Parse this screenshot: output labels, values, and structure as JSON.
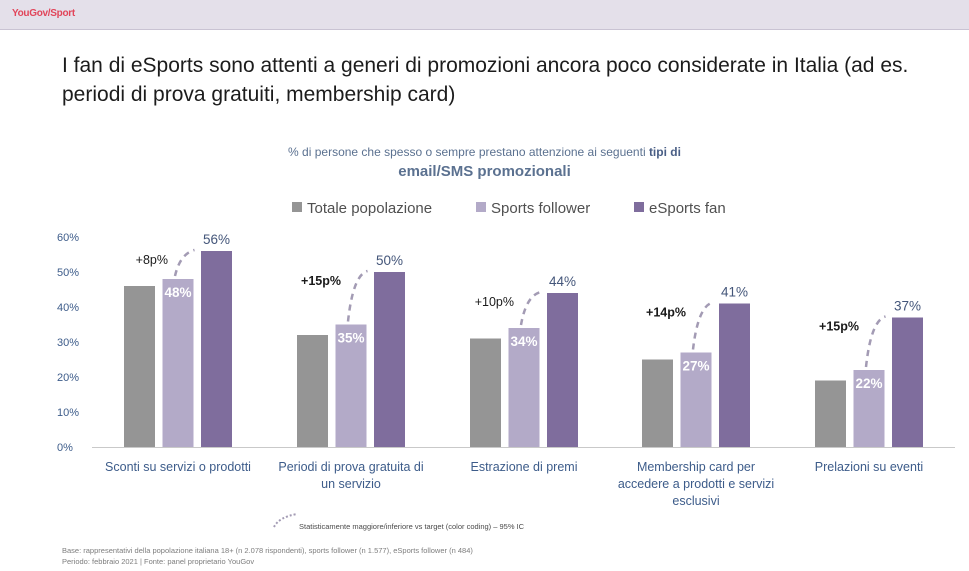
{
  "header": {
    "brand": "YouGov/Sport",
    "title": "I fan di eSports sono attenti a generi di promozioni ancora poco considerate in Italia (ad es. periodi di prova gratuiti, membership card)"
  },
  "subtitle": {
    "line1_prefix": "% di persone che spesso o sempre prestano attenzione ai seguenti ",
    "line1_bold": "tipi di",
    "line2": "email/SMS promozionali"
  },
  "chart_data": {
    "type": "bar",
    "categories": [
      [
        "Sconti su servizi o prodotti"
      ],
      [
        "Periodi di prova gratuita di",
        "un servizio"
      ],
      [
        "Estrazione di premi"
      ],
      [
        "Membership card per",
        "accedere a prodotti e servizi",
        "esclusivi"
      ],
      [
        "Prelazioni su eventi"
      ]
    ],
    "series": [
      {
        "name": "Totale popolazione",
        "color": "#959595",
        "values": [
          46,
          32,
          31,
          25,
          19
        ],
        "labels": [
          "",
          "",
          "",
          "",
          ""
        ]
      },
      {
        "name": "Sports follower",
        "color": "#b3aac8",
        "values": [
          48,
          35,
          34,
          27,
          22
        ],
        "labels": [
          "48%",
          "35%",
          "34%",
          "27%",
          "22%"
        ]
      },
      {
        "name": "eSports fan",
        "color": "#7f6d9d",
        "values": [
          56,
          50,
          44,
          41,
          37
        ],
        "labels": [
          "56%",
          "50%",
          "44%",
          "41%",
          "37%"
        ]
      }
    ],
    "annotations": [
      "+8p%",
      "+15p%",
      "+10p%",
      "+14p%",
      "+15p%"
    ],
    "annotation_bold": [
      false,
      true,
      false,
      true,
      true
    ],
    "yticks": [
      0,
      10,
      20,
      30,
      40,
      50,
      60
    ],
    "ytick_labels": [
      "0%",
      "10%",
      "20%",
      "30%",
      "40%",
      "50%",
      "60%"
    ],
    "ylim": [
      0,
      60
    ],
    "legend_position": "top-center",
    "grid": false,
    "colors": {
      "total": "#959595",
      "sports": "#b3aac8",
      "esports": "#7f6d9d",
      "annotation": "#a39bb4"
    }
  },
  "note": "Statisticamente maggiore/inferiore vs target (color coding) – 95% IC",
  "footer": {
    "line1": "Base: rappresentativi della popolazione italiana 18+ (n 2.078 rispondenti), sports follower (n 1.577), eSports follower (n 484)",
    "line2": "Periodo: febbraio 2021  |  Fonte: panel proprietario YouGov"
  }
}
